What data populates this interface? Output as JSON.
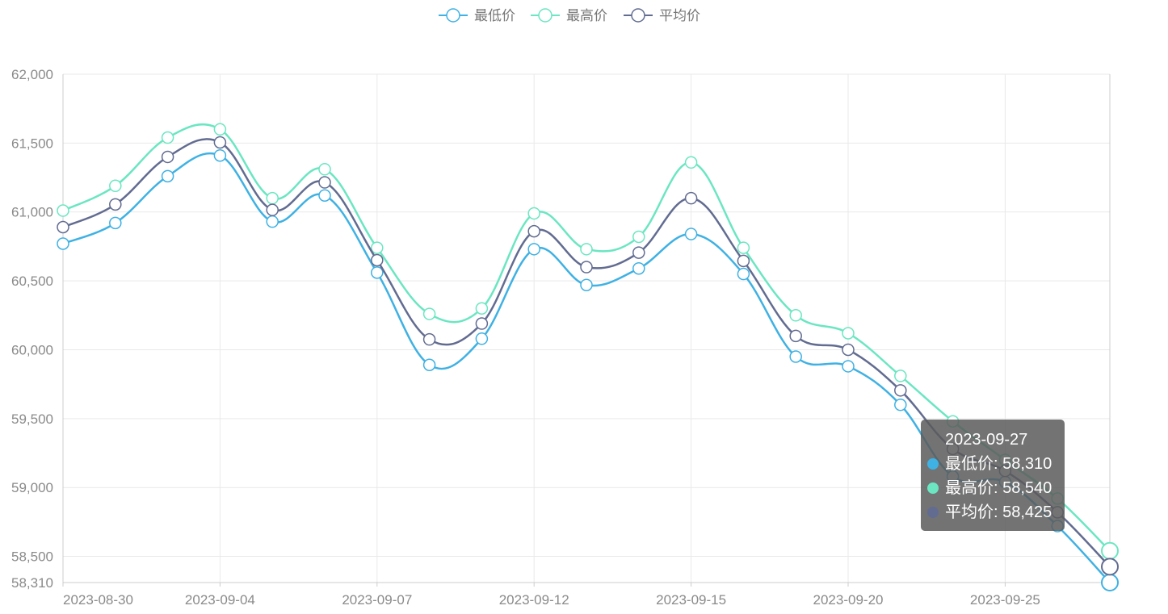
{
  "chart_data": {
    "type": "line",
    "x": [
      "2023-08-30",
      "2023-08-31",
      "2023-09-01",
      "2023-09-04",
      "2023-09-05",
      "2023-09-06",
      "2023-09-07",
      "2023-09-08",
      "2023-09-11",
      "2023-09-12",
      "2023-09-13",
      "2023-09-14",
      "2023-09-15",
      "2023-09-18",
      "2023-09-19",
      "2023-09-20",
      "2023-09-21",
      "2023-09-22",
      "2023-09-25",
      "2023-09-26",
      "2023-09-27"
    ],
    "x_tick_labels": [
      "2023-08-30",
      "2023-09-04",
      "2023-09-07",
      "2023-09-12",
      "2023-09-15",
      "2023-09-20",
      "2023-09-25"
    ],
    "y_ticks": [
      58310,
      58500,
      59000,
      59500,
      60000,
      60500,
      61000,
      61500,
      62000
    ],
    "y_tick_labels": [
      "58,310",
      "58,500",
      "59,000",
      "59,500",
      "60,000",
      "60,500",
      "61,000",
      "61,500",
      "62,000"
    ],
    "ylim": [
      58310,
      62000
    ],
    "grid": true,
    "legend_position": "top-center",
    "series": [
      {
        "name": "最低价",
        "color": "#3fb1e3",
        "values": [
          60770,
          60920,
          61260,
          61410,
          60930,
          61120,
          60560,
          59890,
          60080,
          60730,
          60470,
          60590,
          60840,
          60550,
          59950,
          59880,
          59600,
          59080,
          59040,
          58720,
          58310
        ]
      },
      {
        "name": "最高价",
        "color": "#6be6c1",
        "values": [
          61010,
          61190,
          61540,
          61600,
          61100,
          61310,
          60740,
          60260,
          60300,
          60990,
          60730,
          60820,
          61360,
          60740,
          60250,
          60120,
          59810,
          59480,
          59200,
          58920,
          58540
        ]
      },
      {
        "name": "平均价",
        "color": "#626c91",
        "values": [
          60890,
          61055,
          61400,
          61505,
          61015,
          61215,
          60650,
          60075,
          60190,
          60860,
          60600,
          60705,
          61100,
          60645,
          60100,
          60000,
          59705,
          59280,
          59120,
          58820,
          58425
        ]
      }
    ]
  },
  "tooltip": {
    "title": "2023-09-27",
    "rows": [
      {
        "label": "最低价: 58,310",
        "color": "#3fb1e3"
      },
      {
        "label": "最高价: 58,540",
        "color": "#6be6c1"
      },
      {
        "label": "平均价: 58,425",
        "color": "#626c91"
      }
    ]
  }
}
